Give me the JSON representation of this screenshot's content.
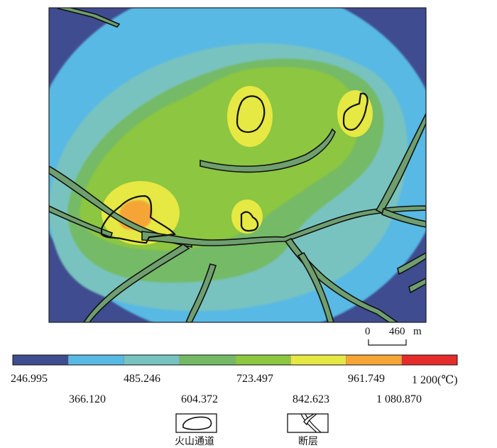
{
  "colors": {
    "frame": "#222222",
    "fault_stroke": "#111111",
    "fault_fill": "#6f9f6f",
    "zone_1": "#3f4c8f",
    "zone_2": "#58b9e4",
    "zone_3": "#78c3c0",
    "zone_4": "#74ba66",
    "zone_5": "#8dc63f",
    "zone_6": "#e6e844",
    "zone_7": "#f5a536",
    "zone_8": "#e62b2b"
  },
  "scale": {
    "zero": "0",
    "length": "460",
    "unit": "m"
  },
  "colorbar": {
    "swatches": [
      "#3f4c8f",
      "#58b9e4",
      "#78c3c0",
      "#74ba66",
      "#8dc63f",
      "#e6e844",
      "#f5a536",
      "#e62b2b"
    ],
    "labels_top": [
      "246.995",
      "485.246",
      "723.497",
      "961.749",
      "1 200(℃)"
    ],
    "labels_bottom": [
      "366.120",
      "604.372",
      "842.623",
      "1 080.870"
    ]
  },
  "legend": {
    "volcanic_conduit": {
      "label": "火山通道",
      "icon": "conduit-outline-icon"
    },
    "fault": {
      "label": "断层",
      "icon": "fault-lines-icon"
    }
  }
}
